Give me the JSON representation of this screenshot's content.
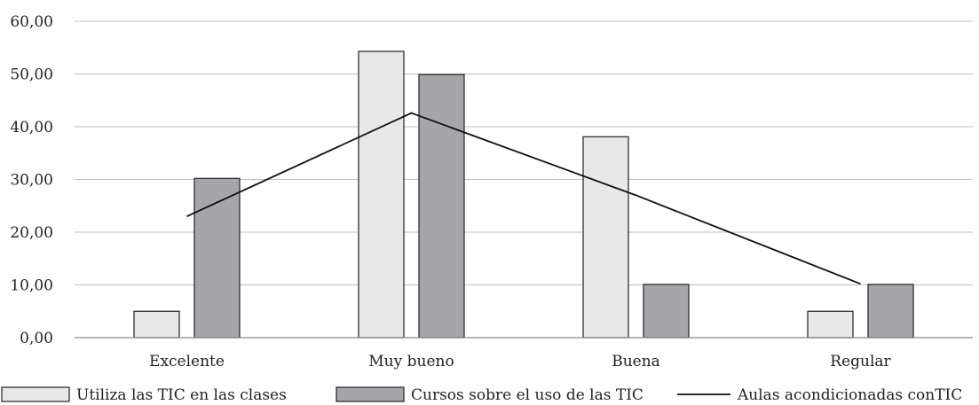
{
  "chart_data": {
    "type": "bar",
    "title": "",
    "xlabel": "",
    "ylabel": "",
    "categories": [
      "Excelente",
      "Muy bueno",
      "Buena",
      "Regular"
    ],
    "ylim": [
      0,
      60
    ],
    "yticks": [
      0,
      10,
      20,
      30,
      40,
      50,
      60
    ],
    "ytick_labels": [
      "0,00",
      "10,00",
      "20,00",
      "30,00",
      "40,00",
      "50,00",
      "60,00"
    ],
    "grid": true,
    "legend_position": "bottom",
    "series": [
      {
        "name": "Utiliza las TIC en las clases",
        "kind": "bar",
        "color": "#e8e8e8",
        "values": [
          5,
          54.3,
          38.1,
          5
        ]
      },
      {
        "name": "Cursos sobre el uso de las TIC",
        "kind": "bar",
        "color": "#a6a6aa",
        "values": [
          30.2,
          49.9,
          10.1,
          10.1
        ]
      },
      {
        "name": "Aulas acondicionadas conTIC",
        "kind": "line",
        "color": "#111111",
        "values": [
          23,
          42.6,
          27,
          10.2
        ]
      }
    ]
  }
}
